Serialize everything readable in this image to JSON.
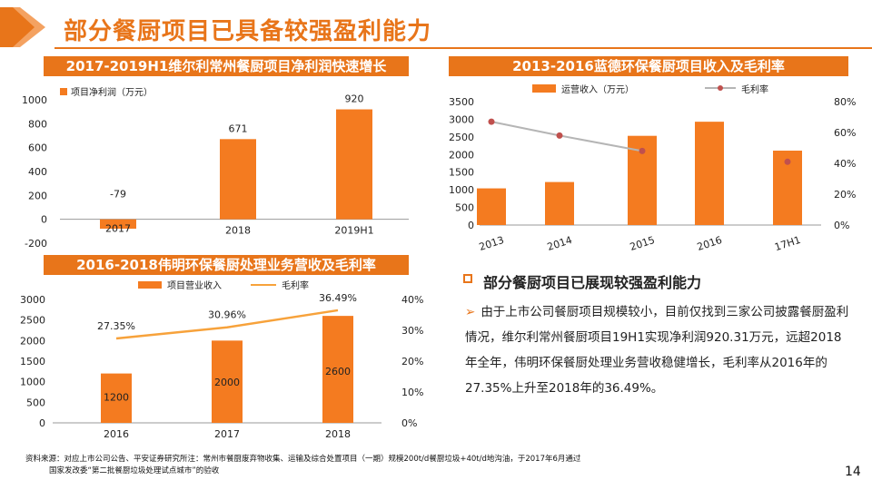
{
  "title": "部分餐厨项目已具备较强盈利能力",
  "colors": {
    "accent": "#E8751A",
    "bar": "#F47B20",
    "line_gray": "#B5B5B5",
    "marker": "#C0504D",
    "line_orange": "#F7A23B"
  },
  "charts": {
    "weili": {
      "header": "2017-2019H1维尔利常州餐厨项目净利润快速增长",
      "legend": "项目净利润（万元）",
      "y_ticks": [
        "1000",
        "800",
        "600",
        "400",
        "200",
        "0",
        "-200"
      ],
      "value_labels": [
        "-79",
        "671",
        "920"
      ],
      "categories": [
        "2017",
        "2018",
        "2019H1"
      ]
    },
    "landeco": {
      "header": "2013-2016蓝德环保餐厨项目收入及毛利率",
      "legend_bar": "运营收入（万元）",
      "legend_line": "毛利率",
      "y_left_ticks": [
        "3500",
        "3000",
        "2500",
        "2000",
        "1500",
        "1000",
        "500",
        "0"
      ],
      "y_right_ticks": [
        "80%",
        "60%",
        "40%",
        "20%",
        "0%"
      ],
      "categories": [
        "2013",
        "2014",
        "2015",
        "2016",
        "17H1"
      ]
    },
    "weiming": {
      "header": "2016-2018伟明环保餐厨处理业务营收及毛利率",
      "legend_bar": "项目营业收入",
      "legend_line": "毛利率",
      "y_left_ticks": [
        "3000",
        "2500",
        "2000",
        "1500",
        "1000",
        "500",
        "0"
      ],
      "y_right_ticks": [
        "40%",
        "30%",
        "20%",
        "10%",
        "0%"
      ],
      "categories": [
        "2016",
        "2017",
        "2018"
      ],
      "bar_labels": [
        "1200",
        "2000",
        "2600"
      ],
      "line_labels": [
        "27.35%",
        "30.96%",
        "36.49%"
      ]
    }
  },
  "chart_data": [
    {
      "type": "bar",
      "title": "2017-2019H1维尔利常州餐厨项目净利润快速增长",
      "categories": [
        "2017",
        "2018",
        "2019H1"
      ],
      "series": [
        {
          "name": "项目净利润（万元）",
          "values": [
            -79,
            671,
            920
          ]
        }
      ],
      "ylim": [
        -200,
        1000
      ]
    },
    {
      "type": "bar",
      "title": "2013-2016蓝德环保餐厨项目收入及毛利率",
      "categories": [
        "2013",
        "2014",
        "2015",
        "2016",
        "17H1"
      ],
      "series": [
        {
          "name": "运营收入（万元）",
          "values": [
            1040,
            1220,
            2530,
            2930,
            2110
          ],
          "axis": "left"
        },
        {
          "name": "毛利率",
          "type": "line",
          "values": [
            0.67,
            0.58,
            0.48,
            null,
            0.41
          ],
          "axis": "right"
        }
      ],
      "ylim": [
        0,
        3500
      ],
      "y2lim": [
        0,
        0.8
      ]
    },
    {
      "type": "bar",
      "title": "2016-2018伟明环保餐厨处理业务营收及毛利率",
      "categories": [
        "2016",
        "2017",
        "2018"
      ],
      "series": [
        {
          "name": "项目营业收入",
          "values": [
            1200,
            2000,
            2600
          ],
          "axis": "left"
        },
        {
          "name": "毛利率",
          "type": "line",
          "values": [
            0.2735,
            0.3096,
            0.3649
          ],
          "axis": "right"
        }
      ],
      "ylim": [
        0,
        3000
      ],
      "y2lim": [
        0,
        0.4
      ]
    }
  ],
  "bullet": {
    "title": "部分餐厨项目已展现较强盈利能力",
    "arrow": "➢",
    "text": "由于上市公司餐厨项目规模较小，目前仅找到三家公司披露餐厨盈利情况，维尔利常州餐厨项目19H1实现净利润920.31万元，远超2018年全年，伟明环保餐厨处理业务营收稳健增长，毛利率从2016年的27.35%上升至2018年的36.49%。"
  },
  "source": {
    "line1": "资料来源：对应上市公司公告、平安证券研究所注：常州市餐厨废弃物收集、运输及综合处置项目（一期）规模200t/d餐厨垃圾+40t/d地沟油，于2017年6月通过",
    "line2": "国家发改委“第二批餐厨垃圾处理试点城市”的验收"
  },
  "page_number": "14"
}
